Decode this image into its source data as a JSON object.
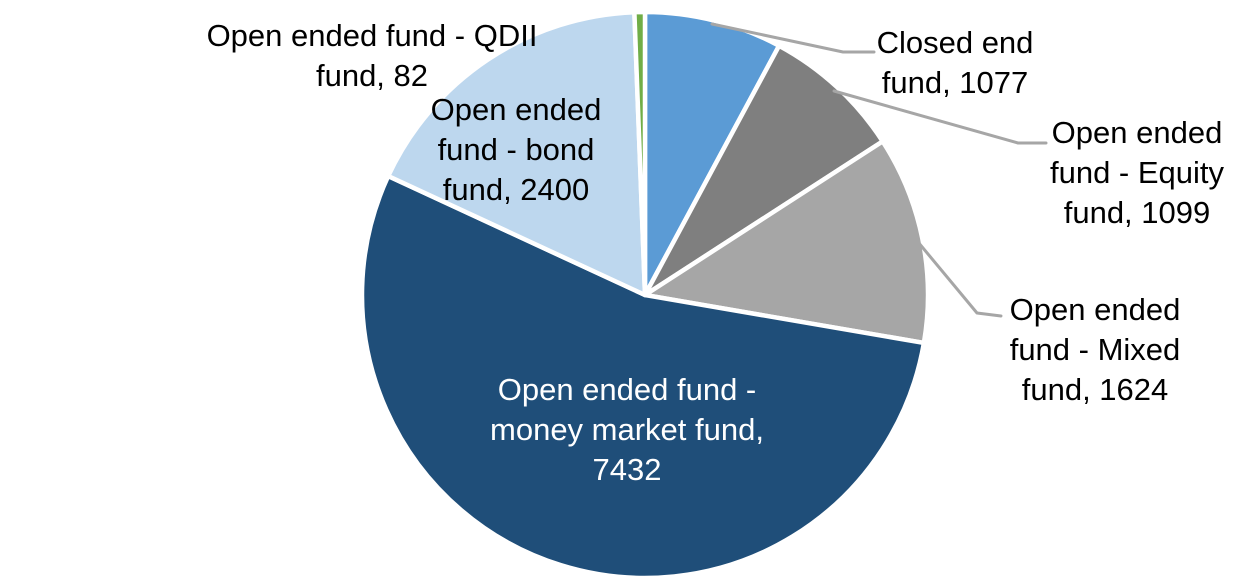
{
  "chart_data": {
    "type": "pie",
    "title": "",
    "has_legend": false,
    "label_style": "category name, value",
    "background_color": "#FFFFFF",
    "label_text_color": "#000000",
    "inside_label_text_color": "#FFFFFF",
    "leader_line_color": "#A6A6A6",
    "slice_border_color": "#FFFFFF",
    "start_angle_deg": 0,
    "direction": "clockwise",
    "total": 13714,
    "slices": [
      {
        "name": "Closed end fund",
        "value": 1077,
        "color": "#5B9BD5",
        "label": "Closed end\nfund, 1077",
        "label_position": "outside-right-top"
      },
      {
        "name": "Open ended fund - Equity fund",
        "value": 1099,
        "color": "#7F7F7F",
        "label": "Open ended\nfund - Equity\nfund, 1099",
        "label_position": "outside-right"
      },
      {
        "name": "Open ended fund - Mixed fund",
        "value": 1624,
        "color": "#A6A6A6",
        "label": "Open ended\nfund - Mixed\nfund, 1624",
        "label_position": "outside-right-bottom"
      },
      {
        "name": "Open ended fund - money market fund",
        "value": 7432,
        "color": "#1F4E79",
        "label": "Open ended fund -\nmoney market fund,\n7432",
        "label_position": "inside"
      },
      {
        "name": "Open ended fund - bond fund",
        "value": 2400,
        "color": "#BDD7EE",
        "label": "Open ended\nfund - bond\nfund, 2400",
        "label_position": "outside-top-left-over-slice"
      },
      {
        "name": "Open ended fund - QDII fund",
        "value": 82,
        "color": "#70AD47",
        "label": "Open ended fund - QDII\nfund, 82",
        "label_position": "outside-top-left"
      }
    ]
  }
}
